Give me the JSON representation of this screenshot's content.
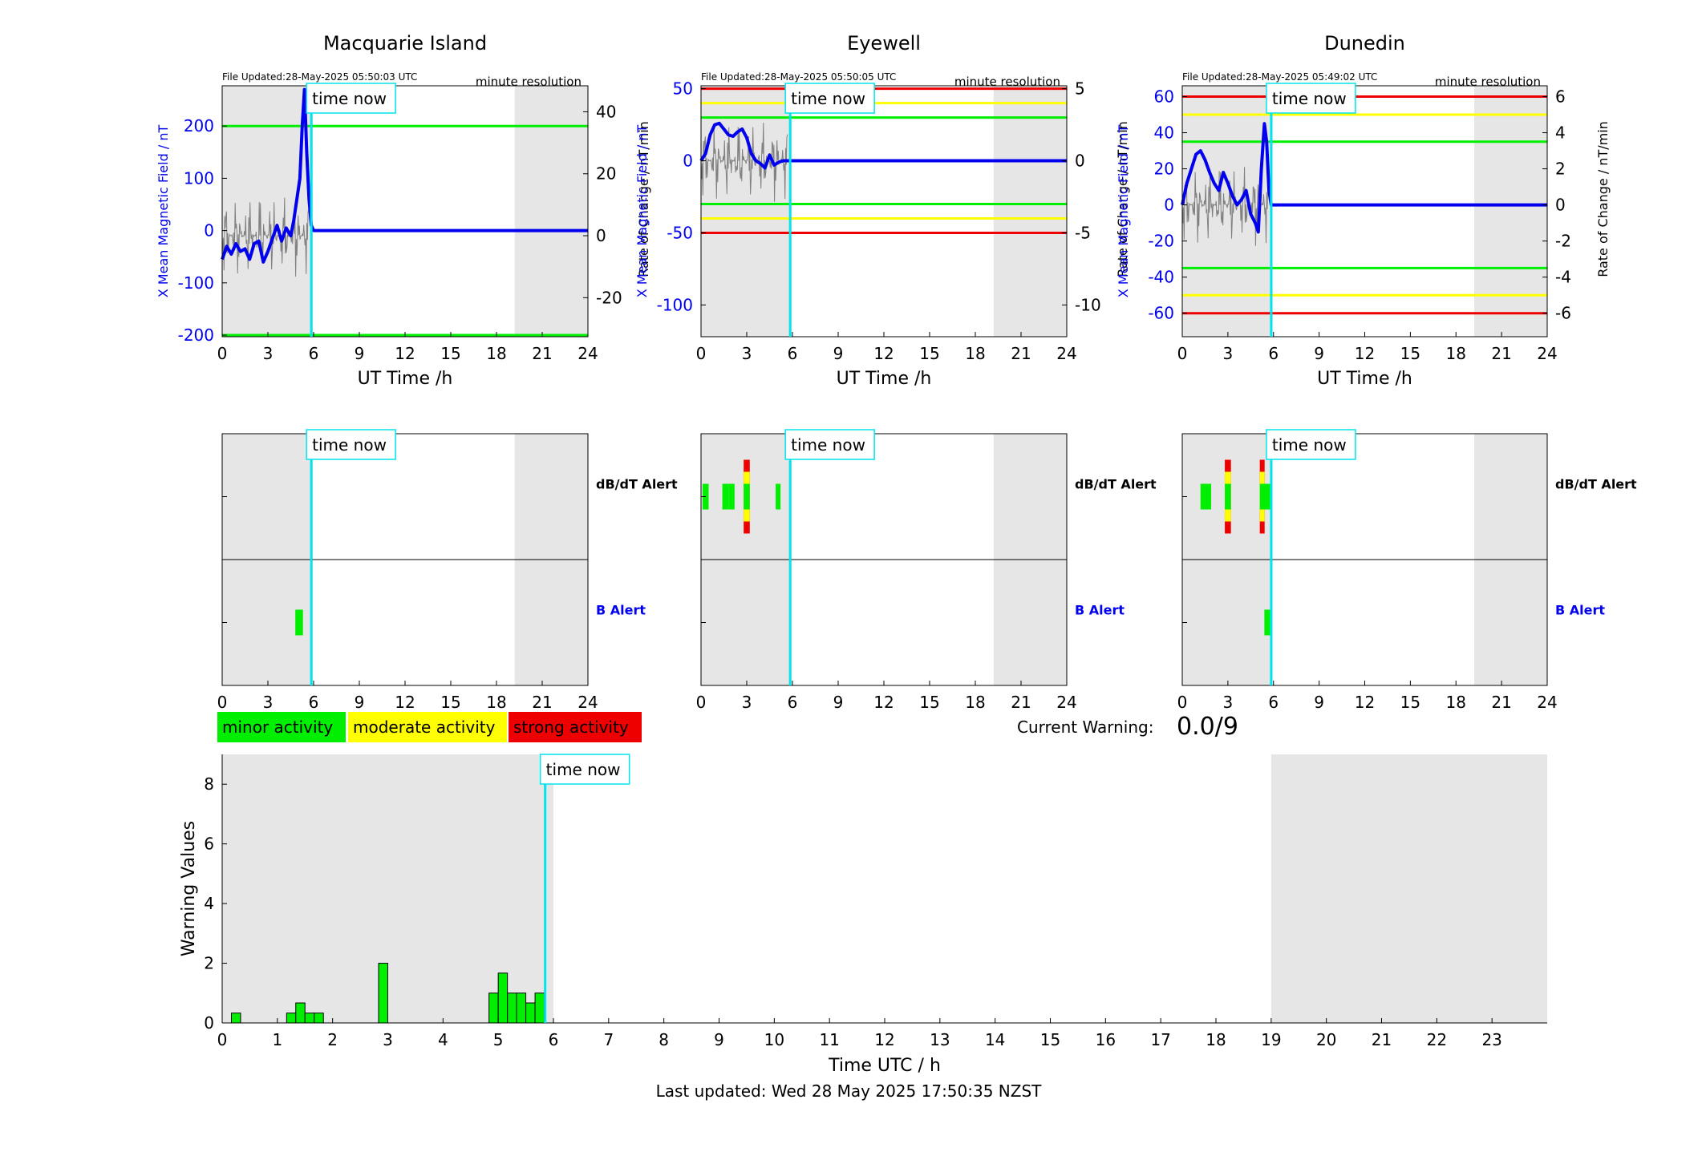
{
  "footer": {
    "last_updated": "Last updated: Wed 28 May 2025 17:50:35 NZST"
  },
  "common": {
    "time_now_label": "time now",
    "time_now_h": 5.85,
    "resolution": "minute resolution",
    "xlabel": "UT Time /h",
    "xticks": [
      0,
      3,
      6,
      9,
      12,
      15,
      18,
      21,
      24
    ],
    "shade_h": [
      [
        0,
        5.95
      ],
      [
        19.2,
        24
      ]
    ],
    "mag_ylabel": "X Mean Magnetic Field / nT",
    "rate_ylabel": "Rate of Change / nT/min",
    "dbdt_label": "dB/dT Alert",
    "b_label": "B Alert"
  },
  "colors": {
    "blue": "#0000ee",
    "cyan": "#00e5ee",
    "green": "#00ee00",
    "yellow": "#ffff00",
    "red": "#ee0000",
    "shade": "#e6e6e6"
  },
  "chart_data": [
    {
      "type": "line",
      "title": "Macquarie Island",
      "file_updated": "File Updated:28-May-2025 05:50:03 UTC",
      "ylim": [
        -203,
        277
      ],
      "yticks": [
        -200,
        -100,
        0,
        100,
        200
      ],
      "rate_ylim": [
        -32.6,
        48.4
      ],
      "rate_ticks": [
        -20,
        0,
        20,
        40
      ],
      "thresholds": [
        {
          "value": 200,
          "color": "green"
        },
        {
          "value": -200,
          "color": "green"
        }
      ],
      "series": [
        {
          "x": [
            0,
            0.3,
            0.6,
            0.9,
            1.2,
            1.5,
            1.8,
            2.1,
            2.4,
            2.7,
            3.0,
            3.3,
            3.6,
            3.9,
            4.2,
            4.5,
            4.7,
            4.9,
            5.1,
            5.25,
            5.4,
            5.55,
            5.7,
            5.85,
            6,
            24
          ],
          "y": [
            -55,
            -30,
            -45,
            -25,
            -40,
            -35,
            -55,
            -25,
            -20,
            -60,
            -40,
            -15,
            10,
            -20,
            5,
            -10,
            20,
            60,
            100,
            200,
            270,
            150,
            60,
            10,
            0,
            0
          ]
        }
      ],
      "dbdt_alert": [],
      "b_alert": [
        {
          "start": 4.8,
          "end": 5.3,
          "levels": [
            "green"
          ]
        }
      ]
    },
    {
      "type": "line",
      "title": "Eyewell",
      "file_updated": "File Updated:28-May-2025 05:50:05 UTC",
      "ylim": [
        -122,
        52
      ],
      "yticks": [
        -100,
        -50,
        0,
        50
      ],
      "rate_ylim": [
        -12.2,
        5.2
      ],
      "rate_ticks": [
        -10,
        -5,
        0,
        5
      ],
      "thresholds": [
        {
          "value": 50,
          "color": "red"
        },
        {
          "value": 40,
          "color": "yellow"
        },
        {
          "value": 30,
          "color": "green"
        },
        {
          "value": -30,
          "color": "green"
        },
        {
          "value": -40,
          "color": "yellow"
        },
        {
          "value": -50,
          "color": "red"
        }
      ],
      "series": [
        {
          "x": [
            0,
            0.3,
            0.6,
            0.9,
            1.2,
            1.5,
            1.8,
            2.1,
            2.4,
            2.7,
            3.0,
            3.3,
            3.6,
            3.9,
            4.2,
            4.5,
            4.8,
            5.1,
            5.4,
            6,
            24
          ],
          "y": [
            0,
            5,
            18,
            25,
            26,
            22,
            18,
            17,
            20,
            22,
            16,
            5,
            0,
            -2,
            -5,
            4,
            -3,
            -1,
            0,
            0,
            0
          ]
        }
      ],
      "dbdt_alert": [
        {
          "start": 0.1,
          "end": 0.5,
          "levels": [
            "green"
          ]
        },
        {
          "start": 1.4,
          "end": 1.8,
          "levels": [
            "green"
          ]
        },
        {
          "start": 1.8,
          "end": 2.2,
          "levels": [
            "green"
          ]
        },
        {
          "start": 2.8,
          "end": 3.2,
          "levels": [
            "green",
            "yellow",
            "red"
          ]
        },
        {
          "start": 4.9,
          "end": 5.2,
          "levels": [
            "green"
          ]
        }
      ],
      "b_alert": []
    },
    {
      "type": "line",
      "title": "Dunedin",
      "file_updated": "File Updated:28-May-2025 05:49:02 UTC",
      "ylim": [
        -73,
        66
      ],
      "yticks": [
        -60,
        -40,
        -20,
        0,
        20,
        40,
        60
      ],
      "rate_ylim": [
        -7.3,
        6.6
      ],
      "rate_ticks": [
        -6,
        -4,
        -2,
        0,
        2,
        4,
        6
      ],
      "thresholds": [
        {
          "value": 60,
          "color": "red"
        },
        {
          "value": 50,
          "color": "yellow"
        },
        {
          "value": 35,
          "color": "green"
        },
        {
          "value": -35,
          "color": "green"
        },
        {
          "value": -50,
          "color": "yellow"
        },
        {
          "value": -60,
          "color": "red"
        }
      ],
      "series": [
        {
          "x": [
            0,
            0.3,
            0.6,
            0.9,
            1.2,
            1.5,
            1.8,
            2.1,
            2.4,
            2.7,
            3.0,
            3.3,
            3.6,
            3.9,
            4.2,
            4.5,
            4.8,
            5.0,
            5.2,
            5.4,
            5.55,
            5.7,
            5.85,
            6,
            24
          ],
          "y": [
            0,
            12,
            20,
            28,
            30,
            25,
            18,
            12,
            8,
            18,
            12,
            5,
            0,
            3,
            8,
            -5,
            -10,
            -15,
            20,
            45,
            35,
            8,
            0,
            0,
            0
          ]
        }
      ],
      "dbdt_alert": [
        {
          "start": 1.2,
          "end": 1.9,
          "levels": [
            "green"
          ]
        },
        {
          "start": 2.8,
          "end": 3.2,
          "levels": [
            "green",
            "yellow",
            "red"
          ]
        },
        {
          "start": 5.1,
          "end": 5.4,
          "levels": [
            "green",
            "yellow",
            "red"
          ]
        },
        {
          "start": 5.4,
          "end": 5.9,
          "levels": [
            "green"
          ]
        }
      ],
      "b_alert": [
        {
          "start": 5.4,
          "end": 5.8,
          "levels": [
            "green"
          ]
        }
      ]
    },
    {
      "type": "bar",
      "title": "",
      "xlabel": "Time UTC / h",
      "ylabel": "Warning Values",
      "ylim": [
        0,
        9
      ],
      "yticks": [
        0,
        2,
        4,
        6,
        8
      ],
      "xlim": [
        0,
        24
      ],
      "xticks": [
        0,
        1,
        2,
        3,
        4,
        5,
        6,
        7,
        8,
        9,
        10,
        11,
        12,
        13,
        14,
        15,
        16,
        17,
        18,
        19,
        20,
        21,
        22,
        23
      ],
      "bar_width_h": 0.1667,
      "bars": [
        {
          "x": 0.167,
          "value": 0.33
        },
        {
          "x": 1.167,
          "value": 0.33
        },
        {
          "x": 1.333,
          "value": 0.67
        },
        {
          "x": 1.5,
          "value": 0.33
        },
        {
          "x": 1.667,
          "value": 0.33
        },
        {
          "x": 2.833,
          "value": 2
        },
        {
          "x": 4.833,
          "value": 1
        },
        {
          "x": 5.0,
          "value": 1.67
        },
        {
          "x": 5.167,
          "value": 1
        },
        {
          "x": 5.333,
          "value": 1
        },
        {
          "x": 5.5,
          "value": 0.67
        },
        {
          "x": 5.667,
          "value": 1
        }
      ],
      "shade_h": [
        [
          0,
          6
        ],
        [
          19,
          24
        ]
      ],
      "time_now_h": 5.85
    }
  ],
  "legend": {
    "items": [
      {
        "label": "minor activity",
        "color": "green"
      },
      {
        "label": "moderate activity",
        "color": "yellow"
      },
      {
        "label": "strong activity",
        "color": "red"
      }
    ]
  },
  "warning": {
    "label": "Current Warning:",
    "value": "0.0/9"
  }
}
